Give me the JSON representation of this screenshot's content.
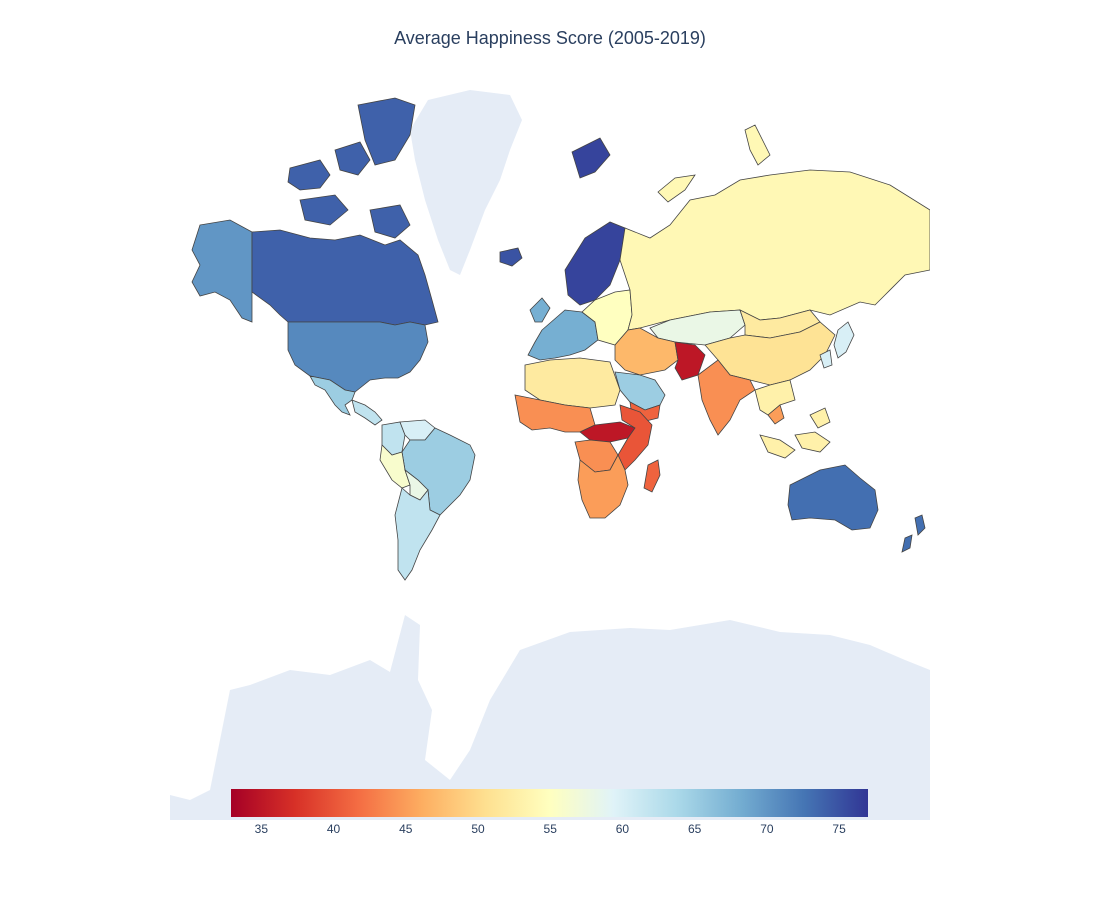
{
  "chart_data": {
    "type": "choropleth",
    "title": "Average Happiness Score (2005-2019)",
    "projection": "mercator",
    "colorscale": "RdYlBu",
    "colorbar": {
      "orientation": "horizontal",
      "range": [
        32.9,
        77.0
      ],
      "ticks": [
        35,
        40,
        45,
        50,
        55,
        60,
        65,
        70,
        75
      ],
      "tick_labels": [
        "35",
        "40",
        "45",
        "50",
        "55",
        "60",
        "65",
        "70",
        "75"
      ]
    },
    "colors": {
      "land_no_data": "#e5ecf6",
      "border": "#444444",
      "text": "#2a3f5f"
    },
    "regions": [
      {
        "name": "Canada",
        "value": 74
      },
      {
        "name": "Greenland",
        "value": null
      },
      {
        "name": "Alaska (USA)",
        "value": 70
      },
      {
        "name": "United States",
        "value": 71
      },
      {
        "name": "Mexico",
        "value": 65
      },
      {
        "name": "Central America",
        "value": 62
      },
      {
        "name": "Brazil",
        "value": 65
      },
      {
        "name": "Colombia",
        "value": 62
      },
      {
        "name": "Venezuela",
        "value": 60
      },
      {
        "name": "Ecuador and Peru",
        "value": 56
      },
      {
        "name": "Bolivia",
        "value": 58
      },
      {
        "name": "Argentina and Chile",
        "value": 62
      },
      {
        "name": "Scandinavia",
        "value": 76
      },
      {
        "name": "Western Europe",
        "value": 68
      },
      {
        "name": "Eastern Europe",
        "value": 55
      },
      {
        "name": "Iceland",
        "value": 75
      },
      {
        "name": "Svalbard",
        "value": 76
      },
      {
        "name": "Russia",
        "value": 54
      },
      {
        "name": "Kazakhstan",
        "value": 58
      },
      {
        "name": "China",
        "value": 51
      },
      {
        "name": "Mongolia",
        "value": 52
      },
      {
        "name": "Middle East",
        "value": 47
      },
      {
        "name": "Saudi Arabia",
        "value": 65
      },
      {
        "name": "Yemen",
        "value": 41
      },
      {
        "name": "Afghanistan",
        "value": 35
      },
      {
        "name": "India",
        "value": 44
      },
      {
        "name": "Southeast Asia",
        "value": 53
      },
      {
        "name": "Cambodia",
        "value": 45
      },
      {
        "name": "North Africa",
        "value": 52
      },
      {
        "name": "West Africa",
        "value": 44
      },
      {
        "name": "Central Africa",
        "value": 35
      },
      {
        "name": "East Africa",
        "value": 40
      },
      {
        "name": "Southern Africa",
        "value": 45
      },
      {
        "name": "Madagascar",
        "value": 41
      },
      {
        "name": "Australia",
        "value": 73
      },
      {
        "name": "New Zealand",
        "value": 73
      },
      {
        "name": "Japan and Korea",
        "value": 60
      }
    ]
  }
}
